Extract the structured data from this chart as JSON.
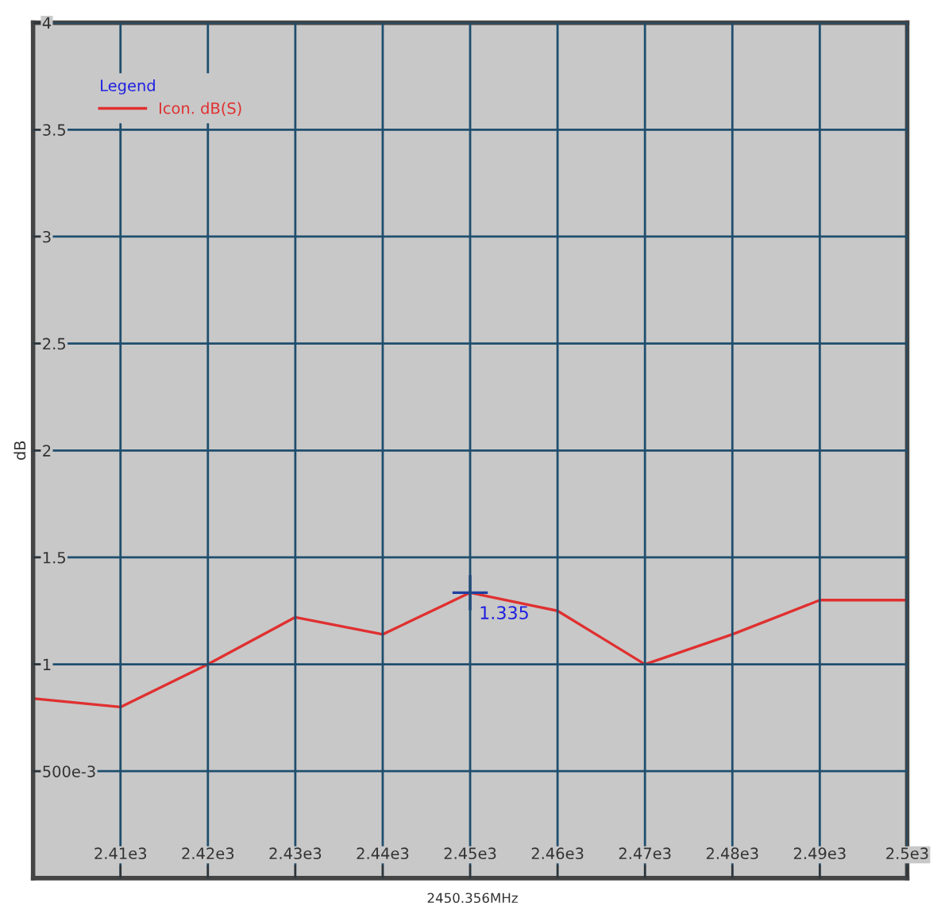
{
  "chart_data": {
    "type": "line",
    "x": [
      2400,
      2410,
      2420,
      2430,
      2440,
      2450,
      2460,
      2470,
      2480,
      2490,
      2500
    ],
    "series": [
      {
        "name": "Icon. dB(S)",
        "color": "#e03030",
        "values": [
          0.84,
          0.8,
          1.0,
          1.22,
          1.14,
          1.335,
          1.25,
          1.0,
          1.14,
          1.3,
          1.3
        ]
      }
    ],
    "xlim": [
      2400,
      2500
    ],
    "ylim": [
      0,
      4
    ],
    "xticks": [
      {
        "value": 2410,
        "label": "2.41e3"
      },
      {
        "value": 2420,
        "label": "2.42e3"
      },
      {
        "value": 2430,
        "label": "2.43e3"
      },
      {
        "value": 2440,
        "label": "2.44e3"
      },
      {
        "value": 2450,
        "label": "2.45e3"
      },
      {
        "value": 2460,
        "label": "2.46e3"
      },
      {
        "value": 2470,
        "label": "2.47e3"
      },
      {
        "value": 2480,
        "label": "2.48e3"
      },
      {
        "value": 2490,
        "label": "2.49e3"
      },
      {
        "value": 2500,
        "label": "2.5e3"
      }
    ],
    "yticks": [
      {
        "value": 0.5,
        "label": "500e-3"
      },
      1,
      1.5,
      2,
      2.5,
      3,
      3.5,
      4
    ],
    "ylabel": "dB",
    "xlabel": "2450.356MHz",
    "legend_title": "Legend",
    "legend": "top left",
    "annotations": [
      {
        "text": "1.335",
        "x": 2450,
        "y": 1.335
      }
    ],
    "grid": true,
    "marker": "none",
    "line_style": "solid"
  }
}
